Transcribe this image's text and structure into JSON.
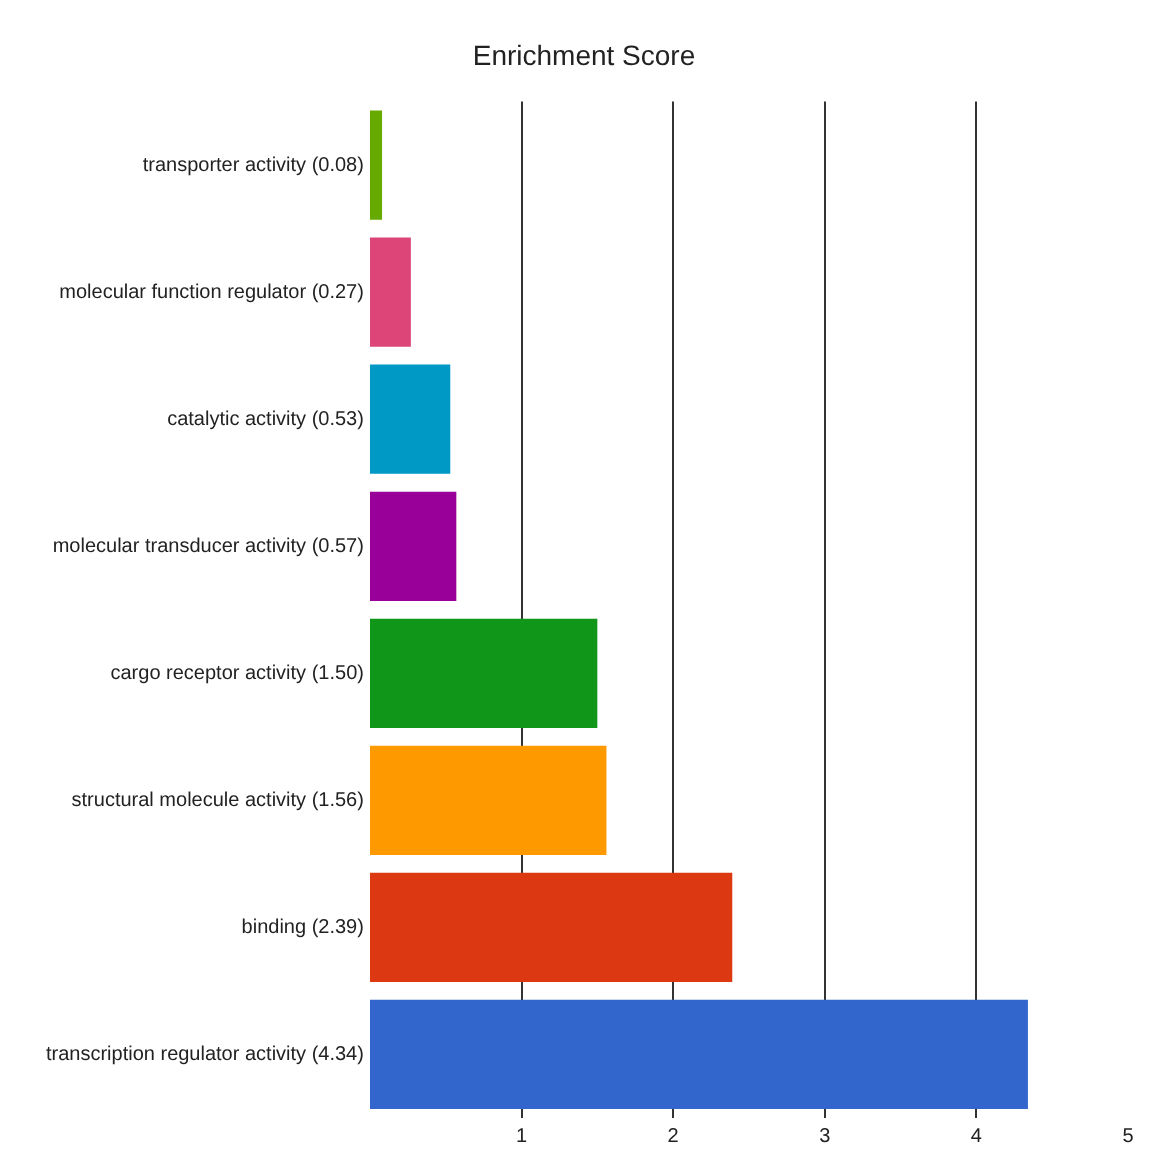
{
  "chart_data": {
    "type": "bar",
    "orientation": "horizontal",
    "title": "Enrichment Score",
    "categories": [
      "transporter activity (0.08)",
      "molecular function regulator (0.27)",
      "catalytic activity (0.53)",
      "molecular transducer activity (0.57)",
      "cargo receptor activity (1.50)",
      "structural molecule activity (1.56)",
      "binding (2.39)",
      "transcription regulator activity (4.34)"
    ],
    "values": [
      0.08,
      0.27,
      0.53,
      0.57,
      1.5,
      1.56,
      2.39,
      4.34
    ],
    "colors": [
      "#66aa00",
      "#dd4477",
      "#0099c6",
      "#990099",
      "#109618",
      "#ff9900",
      "#dc3912",
      "#3366cc"
    ],
    "xlim": [
      0,
      5
    ],
    "xticks": [
      1,
      2,
      3,
      4,
      5
    ],
    "grid": "x",
    "legend": false
  }
}
